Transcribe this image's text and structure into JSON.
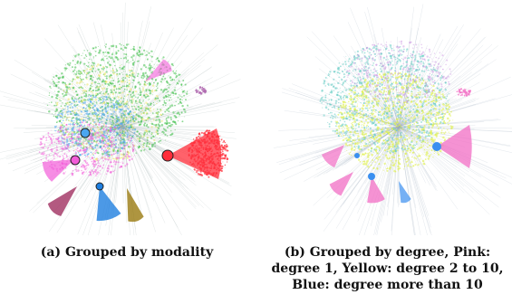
{
  "figure": {
    "panel_a": {
      "caption": "(a) Grouped by modality",
      "palette": [
        "#e8e04a",
        "#3fbf4a",
        "#ff2d3a",
        "#f25cd8",
        "#4aa6f0",
        "#1f7fe0",
        "#a03060",
        "#9a7a10",
        "#8a8a8a"
      ]
    },
    "panel_b": {
      "caption_lines": [
        "(b) Grouped by degree, Pink:",
        "degree 1, Yellow: degree 2 to 10,",
        "Blue: degree more than 10"
      ],
      "legend_colors": {
        "degree 1": "#f26ec4",
        "degree 2 to 10": "#dff04a",
        "degree more than 10": "#3a8ff0"
      }
    }
  }
}
